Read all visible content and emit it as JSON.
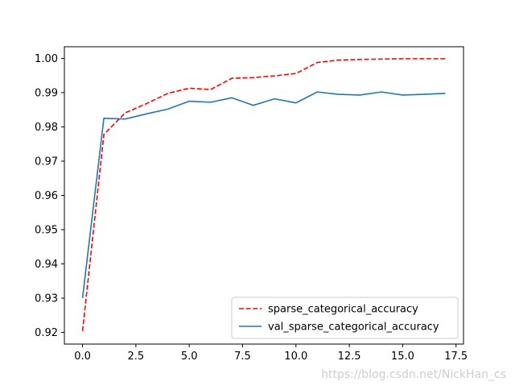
{
  "chart_data": {
    "type": "line",
    "title": "",
    "xlabel": "",
    "ylabel": "",
    "xlim": [
      -0.85,
      17.85
    ],
    "ylim": [
      0.9166,
      1.0034
    ],
    "xticks": [
      0.0,
      2.5,
      5.0,
      7.5,
      10.0,
      12.5,
      15.0,
      17.5
    ],
    "xtick_labels": [
      "0.0",
      "2.5",
      "5.0",
      "7.5",
      "10.0",
      "12.5",
      "15.0",
      "17.5"
    ],
    "yticks": [
      0.92,
      0.93,
      0.94,
      0.95,
      0.96,
      0.97,
      0.98,
      0.99,
      1.0
    ],
    "ytick_labels": [
      "0.92",
      "0.93",
      "0.94",
      "0.95",
      "0.96",
      "0.97",
      "0.98",
      "0.99",
      "1.00"
    ],
    "grid": false,
    "legend_position": "lower-right",
    "series": [
      {
        "name": "sparse_categorical_accuracy",
        "color": "#ff0000",
        "style": "dashed",
        "x": [
          0,
          1,
          2,
          3,
          4,
          5,
          6,
          7,
          8,
          9,
          10,
          11,
          12,
          13,
          14,
          15,
          16,
          17
        ],
        "values": [
          0.9204,
          0.9778,
          0.9841,
          0.9868,
          0.9898,
          0.9913,
          0.9909,
          0.9942,
          0.9944,
          0.9949,
          0.9956,
          0.9988,
          0.9995,
          0.9997,
          0.9998,
          0.9999,
          0.9999,
          0.9999
        ]
      },
      {
        "name": "val_sparse_categorical_accuracy",
        "color": "#1f77b4",
        "style": "solid",
        "x": [
          0,
          1,
          2,
          3,
          4,
          5,
          6,
          7,
          8,
          9,
          10,
          11,
          12,
          13,
          14,
          15,
          16,
          17
        ],
        "values": [
          0.93,
          0.9825,
          0.9823,
          0.9838,
          0.9852,
          0.9875,
          0.9872,
          0.9885,
          0.9863,
          0.9882,
          0.987,
          0.9902,
          0.9895,
          0.9893,
          0.9902,
          0.9893,
          0.9895,
          0.9898
        ]
      }
    ]
  },
  "watermark": "https://blog.csdn.net/NickHan_cs"
}
